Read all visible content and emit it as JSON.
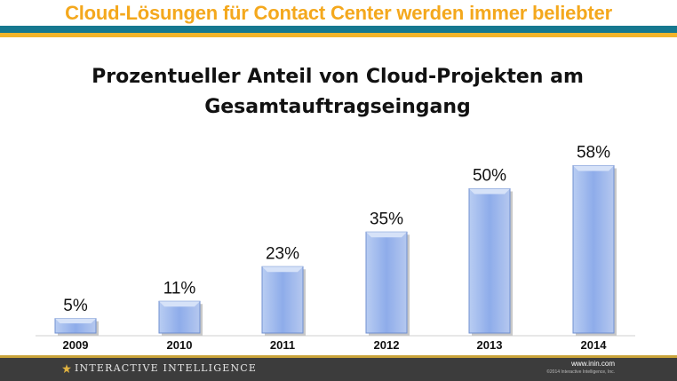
{
  "slide": {
    "title": "Cloud-Lösungen für Contact Center werden immer beliebter",
    "title_color": "#f4a81d",
    "stripe_colors": [
      "#16788f",
      "#f2b42a"
    ]
  },
  "chart_data": {
    "type": "bar",
    "title": "Prozentueller Anteil von Cloud-Projekten am Gesamtauftragseingang",
    "categories": [
      "2009",
      "2010",
      "2011",
      "2012",
      "2013",
      "2014"
    ],
    "values": [
      5,
      11,
      23,
      35,
      50,
      58
    ],
    "value_labels": [
      "5%",
      "11%",
      "23%",
      "35%",
      "50%",
      "58%"
    ],
    "ylim": [
      0,
      60
    ],
    "grid": false,
    "legend": "none",
    "bar_color": "#8faee3"
  },
  "footer": {
    "brand": "Interactive Intelligence",
    "url": "www.inin.com",
    "copyright": "©2014 Interactive Intelligence, Inc.",
    "logo_icon": "star-icon"
  }
}
